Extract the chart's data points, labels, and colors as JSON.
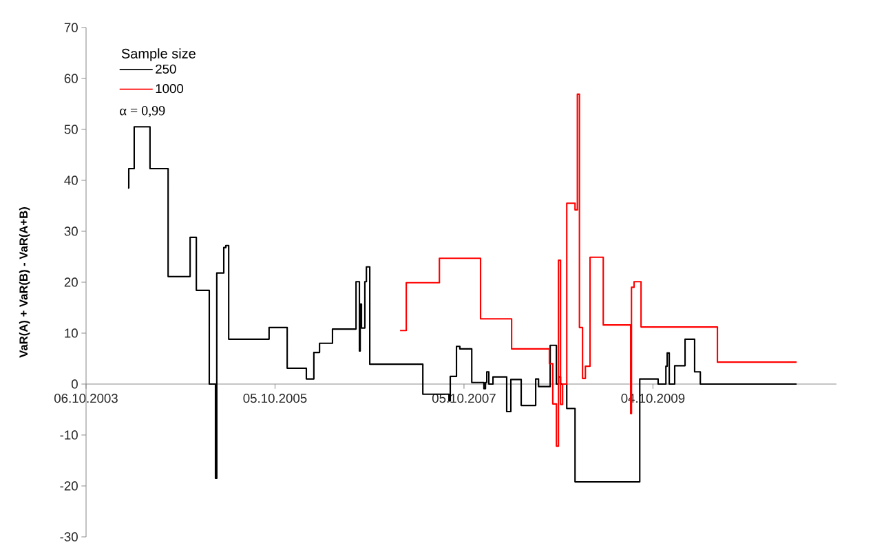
{
  "chart_data": {
    "type": "step",
    "ylabel": "VaR(A) + VaR(B) - VaR(A+B)",
    "legend_title": "Sample size",
    "annotations": [
      "α = 0,99"
    ],
    "xlim": [
      "2003-10-06",
      "2011-09-13"
    ],
    "ylim": [
      -30,
      70
    ],
    "xticks": [
      {
        "value": "2003-10-06",
        "label": "06.10.2003"
      },
      {
        "value": "2005-10-05",
        "label": "05.10.2005"
      },
      {
        "value": "2007-10-05",
        "label": "05.10.2007"
      },
      {
        "value": "2009-10-04",
        "label": "04.10.2009"
      }
    ],
    "yticks": [
      -30,
      -20,
      -10,
      0,
      10,
      20,
      30,
      40,
      50,
      60,
      70
    ],
    "legend": "top left",
    "marker": "none",
    "grid": false,
    "series": [
      {
        "name": "250",
        "color": "#000000",
        "x": [
          "2004-03-16",
          "2004-03-19",
          "2004-04-09",
          "2004-06-09",
          "2004-08-18",
          "2004-11-11",
          "2004-12-05",
          "2005-01-24",
          "2005-02-17",
          "2005-02-22",
          "2005-03-21",
          "2005-03-29",
          "2005-04-09",
          "2005-09-12",
          "2005-11-21",
          "2006-02-03",
          "2006-03-04",
          "2006-03-26",
          "2006-05-15",
          "2006-08-14",
          "2006-08-27",
          "2006-08-30",
          "2006-09-04",
          "2006-09-17",
          "2006-09-23",
          "2006-10-06",
          "2007-04-29",
          "2007-08-08",
          "2007-08-13",
          "2007-09-06",
          "2007-09-19",
          "2007-11-04",
          "2007-12-21",
          "2007-12-27",
          "2008-01-01",
          "2008-01-09",
          "2008-01-25",
          "2008-03-18",
          "2008-04-03",
          "2008-05-13",
          "2008-07-08",
          "2008-07-19",
          "2008-09-02",
          "2008-09-26",
          "2008-10-04",
          "2008-10-12",
          "2008-11-05",
          "2008-12-07",
          "2009-08-14",
          "2009-10-24",
          "2009-11-23",
          "2009-11-28",
          "2009-12-06",
          "2009-12-27",
          "2010-02-05",
          "2010-03-14",
          "2010-04-05",
          "2011-04-12"
        ],
        "values": [
          38.5,
          42.3,
          50.5,
          42.3,
          21.1,
          28.8,
          18.4,
          0,
          -18.5,
          21.8,
          26.8,
          27.2,
          8.8,
          11.1,
          3.1,
          1.0,
          6.2,
          8.0,
          10.8,
          20.1,
          6.5,
          15.7,
          11.0,
          20.1,
          23.0,
          3.9,
          -2.0,
          -3.3,
          1.5,
          7.4,
          6.9,
          0.3,
          -0.9,
          0.3,
          2.4,
          0,
          1.4,
          -5.4,
          0.9,
          -4.2,
          1.0,
          -0.5,
          7.6,
          0,
          1.4,
          0,
          -4.8,
          -19.2,
          1.0,
          0,
          3.5,
          6.1,
          0,
          3.6,
          8.8,
          2.4,
          0,
          0
        ]
      },
      {
        "name": "1000",
        "color": "#ff0000",
        "x": [
          "2007-01-31",
          "2007-02-24",
          "2007-07-02",
          "2007-12-08",
          "2008-04-06",
          "2008-08-30",
          "2008-09-12",
          "2008-09-26",
          "2008-10-04",
          "2008-10-12",
          "2008-10-20",
          "2008-11-05",
          "2008-12-07",
          "2008-12-16",
          "2008-12-24",
          "2009-01-05",
          "2009-01-16",
          "2009-02-03",
          "2009-03-26",
          "2009-07-10",
          "2009-07-13",
          "2009-07-23",
          "2009-08-19",
          "2010-06-10",
          "2011-04-12"
        ],
        "values": [
          10.5,
          19.9,
          24.7,
          12.8,
          6.9,
          4.0,
          -3.9,
          -12.2,
          24.3,
          -4.0,
          0,
          35.5,
          34.2,
          56.9,
          11.1,
          1.1,
          3.5,
          24.9,
          11.6,
          -5.8,
          19.0,
          20.1,
          11.2,
          4.3,
          4.3
        ]
      }
    ]
  }
}
